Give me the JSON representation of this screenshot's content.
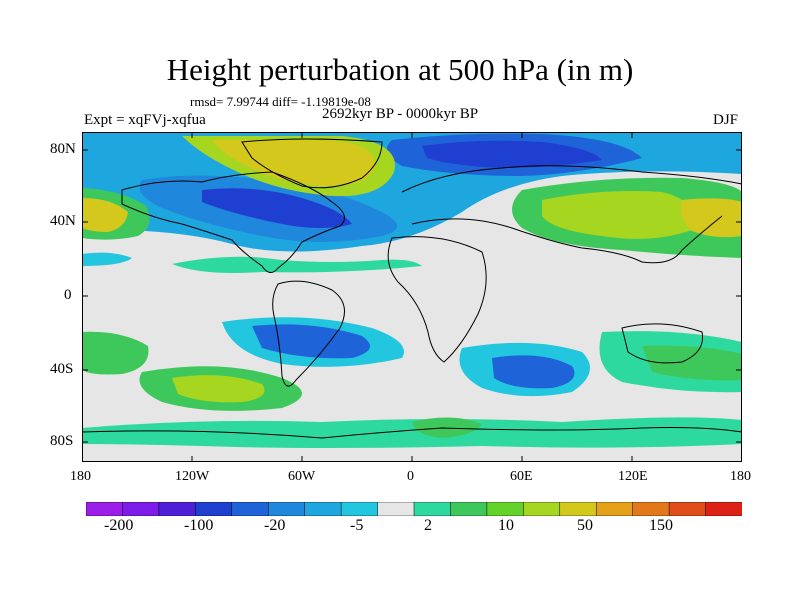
{
  "title": "Height perturbation at 500 hPa (in m)",
  "stats_line": "rmsd= 7.99744 diff= -1.19819e-08",
  "experiment_label": "Expt = xqFVj-xqfua",
  "period_label": "2692kyr BP - 0000kyr BP",
  "season_label": "DJF",
  "axes": {
    "y_labels": [
      "80N",
      "40N",
      "0",
      "40S",
      "80S"
    ],
    "x_labels": [
      "180",
      "120W",
      "60W",
      "0",
      "60E",
      "120E",
      "180"
    ]
  },
  "colorbar": {
    "tick_labels": [
      "-200",
      "-100",
      "-20",
      "-5",
      "2",
      "10",
      "50",
      "150"
    ],
    "colors": [
      "#9c1ce8",
      "#7b1ce8",
      "#4d1fd6",
      "#1f3fd1",
      "#1e63d8",
      "#1f87dc",
      "#1ea7de",
      "#22c6df",
      "#e6e6e6",
      "#2ed9a0",
      "#3ec85b",
      "#63d22b",
      "#a6d620",
      "#d4c81c",
      "#e3a018",
      "#e3781a",
      "#e04d1b",
      "#de2116"
    ]
  },
  "field_colors": {
    "background": "#e6e6e6",
    "land_outline": "#000000"
  }
}
